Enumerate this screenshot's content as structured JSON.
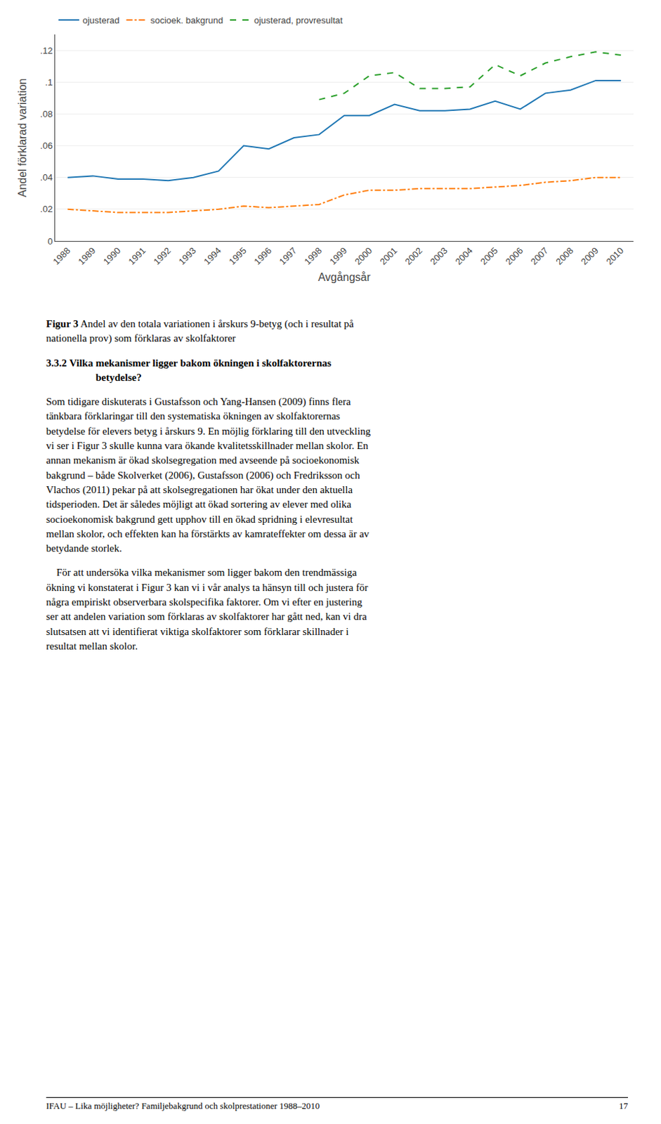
{
  "chart_data": {
    "type": "line",
    "xlabel": "Avgångsår",
    "ylabel": "Andel förklarad variation",
    "x": [
      1988,
      1989,
      1990,
      1991,
      1992,
      1993,
      1994,
      1995,
      1996,
      1997,
      1998,
      1999,
      2000,
      2001,
      2002,
      2003,
      2004,
      2005,
      2006,
      2007,
      2008,
      2009,
      2010
    ],
    "series": [
      {
        "name": "ojusterad",
        "line_style": "solid",
        "values": [
          0.04,
          0.041,
          0.039,
          0.039,
          0.038,
          0.04,
          0.044,
          0.06,
          0.058,
          0.065,
          0.067,
          0.079,
          0.079,
          0.086,
          0.082,
          0.082,
          0.083,
          0.088,
          0.083,
          0.093,
          0.095,
          0.101,
          0.101
        ]
      },
      {
        "name": "socioek. bakgrund",
        "line_style": "dashdot",
        "values": [
          0.02,
          0.019,
          0.018,
          0.018,
          0.018,
          0.019,
          0.02,
          0.022,
          0.021,
          0.022,
          0.023,
          0.029,
          0.032,
          0.032,
          0.033,
          0.033,
          0.033,
          0.034,
          0.035,
          0.037,
          0.038,
          0.04,
          0.04
        ]
      },
      {
        "name": "ojusterad, provresultat",
        "line_style": "dash",
        "x": [
          1998,
          1999,
          2000,
          2001,
          2002,
          2003,
          2004,
          2005,
          2006,
          2007,
          2008,
          2009,
          2010
        ],
        "values": [
          0.089,
          0.093,
          0.104,
          0.106,
          0.096,
          0.096,
          0.097,
          0.111,
          0.104,
          0.112,
          0.116,
          0.119,
          0.117
        ]
      }
    ],
    "xlim": [
      1987.5,
      2010.5
    ],
    "xticks": [
      1988,
      1989,
      1990,
      1991,
      1992,
      1993,
      1994,
      1995,
      1996,
      1997,
      1998,
      1999,
      2000,
      2001,
      2002,
      2003,
      2004,
      2005,
      2006,
      2007,
      2008,
      2009,
      2010
    ],
    "ylim": [
      0,
      0.13
    ],
    "yticks": [
      0,
      {
        "value": 0.02,
        "label": ".02"
      },
      {
        "value": 0.04,
        "label": ".04"
      },
      {
        "value": 0.06,
        "label": ".06"
      },
      {
        "value": 0.08,
        "label": ".08"
      },
      {
        "value": 0.1,
        "label": ".1"
      },
      {
        "value": 0.12,
        "label": ".12"
      }
    ],
    "grid": "y",
    "legend": "upper left",
    "annotations": [
      "Figur 3",
      "Andel av den totala variationen i årskurs 9-betyg (och i resultat på",
      "nationella prov) som förklaras av skolfaktorer",
      "3.3.2",
      "Vilka mekanismer ligger bakom ökningen i skolfaktorernas",
      "betydelse?",
      "Som tidigare diskuterats i Gustafsson och Yang-Hansen (2009) finns flera",
      "tänkbara förklaringar till den systematiska ökningen av skolfaktorernas",
      "betydelse för elevers betyg i årskurs 9. En möjlig förklaring till den utveckling",
      "vi ser i Figur 3 skulle kunna vara ökande kvalitetsskillnader mellan skolor. En",
      "annan mekanism är ökad skolsegregation med avseende på socioekonomisk",
      "bakgrund – både Skolverket (2006), Gustafsson (2006) och Fredriksson och",
      "Vlachos (2011) pekar på att skolsegregationen har ökat under den aktuella",
      "tidsperioden. Det är således möjligt att ökad sortering av elever med olika",
      "socioekonomisk bakgrund gett upphov till en ökad spridning i elevresultat",
      "mellan skolor, och effekten kan ha förstärkts av kamrateffekter om dessa är av",
      "betydande storlek.",
      "    För att undersöka vilka mekanismer som ligger bakom den trendmässiga",
      "ökning vi konstaterat i Figur 3 kan vi i vår analys ta hänsyn till och justera för",
      "några empiriskt observerbara skolspecifika faktorer. Om vi efter en justering",
      "ser att andelen variation som förklaras av skolfaktorer har gått ned, kan vi dra",
      "slutsatsen att vi identifierat viktiga skolfaktorer som förklarar skillnader i",
      "resultat mellan skolor.",
      "IFAU – Lika möjligheter? Familjebakgrund och skolprestationer 1988–2010",
      "17"
    ]
  }
}
